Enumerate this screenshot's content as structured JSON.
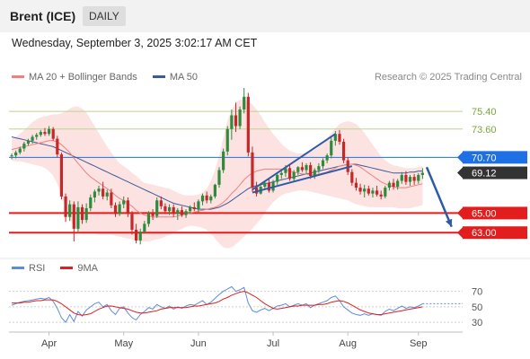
{
  "header": {
    "title": "Brent (ICE)",
    "timeframe": "DAILY",
    "datetime": "Wednesday, September 3, 2025 3:02:17 AM CET"
  },
  "legend": {
    "ma20": "MA 20 + Bollinger Bands",
    "ma50": "MA 50",
    "copyright": "Research © 2025 Trading Central",
    "rsi": "RSI",
    "nine_ma": "9MA"
  },
  "colors": {
    "ma20": "#f08080",
    "ma50": "#3a5a9a",
    "bollinger_fill": "#fde2e2",
    "candle_up": "#2e8b3e",
    "candle_down": "#c62828",
    "resistance": "#b4d88c",
    "pivot": "#1f6fe5",
    "support": "#e11d1d",
    "last_price": "#333333",
    "rsi": "#5b8dd9",
    "rsi_ma": "#e11d1d",
    "arrow": "#2f5aa8"
  },
  "chart_data": [
    {
      "type": "candlestick",
      "x_axis": [
        "Apr",
        "May",
        "Jun",
        "Jul",
        "Aug",
        "Sep"
      ],
      "ylim": [
        61.0,
        77.8
      ],
      "last_price": 69.12,
      "levels": [
        {
          "value": 75.4,
          "label": "75.40",
          "kind": "resistance"
        },
        {
          "value": 73.6,
          "label": "73.60",
          "kind": "resistance"
        },
        {
          "value": 70.7,
          "label": "70.70",
          "kind": "pivot"
        },
        {
          "value": 65.0,
          "label": "65.00",
          "kind": "support"
        },
        {
          "value": 63.0,
          "label": "63.00",
          "kind": "support"
        }
      ],
      "last_label": "69.12",
      "candles": [
        [
          70.8,
          71.1,
          70.5,
          70.9
        ],
        [
          70.9,
          71.4,
          70.6,
          71.2
        ],
        [
          71.2,
          71.8,
          71.0,
          71.6
        ],
        [
          71.6,
          72.3,
          71.3,
          72.1
        ],
        [
          72.1,
          72.6,
          71.9,
          72.4
        ],
        [
          72.4,
          73.0,
          72.1,
          72.8
        ],
        [
          72.8,
          73.2,
          72.5,
          73.0
        ],
        [
          73.0,
          73.5,
          72.8,
          73.3
        ],
        [
          73.3,
          73.7,
          72.9,
          73.1
        ],
        [
          73.1,
          73.9,
          72.9,
          73.6
        ],
        [
          73.6,
          73.8,
          72.4,
          72.6
        ],
        [
          72.6,
          72.9,
          70.7,
          71.0
        ],
        [
          71.0,
          71.2,
          66.4,
          66.7
        ],
        [
          66.7,
          67.0,
          64.1,
          64.6
        ],
        [
          64.6,
          66.3,
          64.2,
          65.9
        ],
        [
          65.9,
          66.2,
          62.1,
          63.4
        ],
        [
          63.4,
          66.2,
          63.1,
          65.6
        ],
        [
          65.6,
          65.9,
          63.9,
          64.3
        ],
        [
          64.3,
          66.0,
          64.0,
          65.5
        ],
        [
          65.5,
          66.9,
          65.2,
          66.6
        ],
        [
          66.6,
          67.4,
          66.1,
          67.2
        ],
        [
          67.2,
          67.8,
          66.8,
          67.5
        ],
        [
          67.5,
          68.2,
          66.4,
          66.7
        ],
        [
          66.7,
          67.4,
          66.3,
          67.1
        ],
        [
          67.1,
          67.5,
          65.5,
          65.8
        ],
        [
          65.8,
          66.1,
          64.6,
          64.9
        ],
        [
          64.9,
          66.2,
          64.7,
          65.9
        ],
        [
          65.9,
          66.7,
          65.5,
          66.3
        ],
        [
          66.3,
          66.6,
          64.6,
          64.9
        ],
        [
          64.9,
          65.2,
          62.8,
          63.3
        ],
        [
          63.3,
          63.9,
          61.9,
          62.2
        ],
        [
          62.2,
          63.4,
          61.8,
          63.1
        ],
        [
          63.1,
          64.2,
          62.9,
          63.9
        ],
        [
          63.9,
          65.2,
          63.6,
          65.0
        ],
        [
          65.0,
          65.4,
          64.3,
          64.7
        ],
        [
          64.7,
          66.6,
          64.5,
          66.3
        ],
        [
          66.3,
          66.7,
          65.4,
          65.7
        ],
        [
          65.7,
          66.0,
          64.9,
          65.2
        ],
        [
          65.2,
          65.9,
          64.8,
          65.6
        ],
        [
          65.6,
          65.9,
          64.6,
          64.9
        ],
        [
          64.9,
          65.5,
          64.3,
          65.3
        ],
        [
          65.3,
          65.7,
          64.6,
          64.8
        ],
        [
          64.8,
          65.4,
          64.5,
          65.2
        ],
        [
          65.2,
          65.8,
          64.9,
          65.6
        ],
        [
          65.6,
          66.1,
          65.2,
          65.4
        ],
        [
          65.4,
          66.4,
          65.1,
          66.2
        ],
        [
          66.2,
          67.0,
          65.8,
          66.8
        ],
        [
          66.8,
          67.2,
          66.0,
          66.3
        ],
        [
          66.3,
          66.9,
          66.0,
          66.7
        ],
        [
          66.7,
          68.0,
          66.5,
          67.9
        ],
        [
          67.9,
          69.7,
          67.6,
          69.4
        ],
        [
          69.4,
          71.6,
          69.1,
          71.3
        ],
        [
          71.3,
          73.9,
          70.9,
          73.6
        ],
        [
          73.6,
          75.6,
          72.5,
          75.0
        ],
        [
          75.0,
          76.3,
          73.3,
          73.9
        ],
        [
          73.9,
          75.9,
          73.6,
          75.6
        ],
        [
          75.6,
          77.8,
          75.2,
          76.9
        ],
        [
          76.9,
          77.3,
          70.8,
          71.2
        ],
        [
          71.2,
          71.8,
          67.2,
          67.6
        ],
        [
          67.6,
          68.2,
          66.7,
          67.0
        ],
        [
          67.0,
          67.9,
          66.9,
          67.7
        ],
        [
          67.7,
          68.3,
          67.5,
          68.1
        ],
        [
          68.1,
          68.6,
          67.1,
          67.3
        ],
        [
          67.3,
          68.4,
          67.1,
          68.2
        ],
        [
          68.2,
          69.1,
          67.9,
          68.9
        ],
        [
          68.9,
          69.4,
          68.5,
          69.1
        ],
        [
          69.1,
          69.9,
          68.7,
          69.6
        ],
        [
          69.6,
          69.9,
          68.3,
          68.5
        ],
        [
          68.5,
          69.4,
          68.2,
          69.2
        ],
        [
          69.2,
          69.8,
          68.9,
          69.7
        ],
        [
          69.7,
          70.2,
          69.2,
          69.4
        ],
        [
          69.4,
          70.1,
          69.0,
          69.9
        ],
        [
          69.9,
          70.2,
          68.5,
          68.8
        ],
        [
          68.8,
          69.6,
          68.5,
          69.4
        ],
        [
          69.4,
          70.1,
          69.1,
          69.8
        ],
        [
          69.8,
          70.6,
          69.5,
          70.4
        ],
        [
          70.4,
          71.1,
          70.1,
          70.9
        ],
        [
          70.9,
          72.7,
          70.6,
          72.4
        ],
        [
          72.4,
          73.4,
          71.9,
          73.1
        ],
        [
          73.1,
          73.5,
          72.0,
          72.3
        ],
        [
          72.3,
          72.6,
          70.1,
          70.4
        ],
        [
          70.4,
          70.7,
          68.9,
          69.2
        ],
        [
          69.2,
          69.5,
          67.8,
          68.1
        ],
        [
          68.1,
          68.6,
          67.3,
          67.6
        ],
        [
          67.6,
          68.0,
          66.9,
          67.2
        ],
        [
          67.2,
          67.9,
          66.6,
          67.5
        ],
        [
          67.5,
          67.8,
          66.8,
          67.0
        ],
        [
          67.0,
          67.6,
          66.6,
          67.3
        ],
        [
          67.3,
          67.8,
          66.7,
          66.9
        ],
        [
          66.9,
          67.3,
          66.4,
          66.7
        ],
        [
          66.7,
          67.8,
          66.5,
          67.6
        ],
        [
          67.6,
          68.3,
          67.3,
          68.1
        ],
        [
          68.1,
          68.5,
          67.4,
          67.7
        ],
        [
          67.7,
          68.5,
          67.4,
          68.3
        ],
        [
          68.3,
          69.2,
          68.0,
          68.9
        ],
        [
          68.9,
          69.3,
          67.9,
          68.2
        ],
        [
          68.2,
          68.9,
          67.8,
          68.7
        ],
        [
          68.7,
          69.0,
          67.9,
          68.3
        ],
        [
          68.3,
          69.1,
          68.0,
          68.9
        ],
        [
          68.9,
          69.6,
          68.5,
          69.12
        ]
      ],
      "ma20": [
        71.5,
        71.6,
        71.7,
        71.8,
        71.9,
        72.0,
        72.1,
        72.2,
        72.3,
        72.4,
        72.4,
        72.3,
        72.0,
        71.6,
        71.2,
        70.6,
        70.1,
        69.6,
        69.1,
        68.7,
        68.4,
        68.1,
        67.8,
        67.5,
        67.2,
        66.8,
        66.5,
        66.3,
        66.0,
        65.7,
        65.3,
        65.0,
        64.8,
        64.7,
        64.6,
        64.6,
        64.6,
        64.6,
        64.6,
        64.6,
        64.7,
        64.8,
        64.9,
        65.0,
        65.1,
        65.2,
        65.3,
        65.4,
        65.5,
        65.6,
        65.8,
        66.1,
        66.5,
        67.0,
        67.4,
        67.9,
        68.4,
        68.8,
        69.1,
        69.3,
        69.4,
        69.5,
        69.5,
        69.5,
        69.5,
        69.5,
        69.4,
        69.3,
        69.2,
        69.1,
        69.0,
        69.0,
        68.9,
        68.9,
        69.0,
        69.1,
        69.2,
        69.4,
        69.6,
        69.8,
        69.9,
        70.0,
        70.0,
        69.9,
        69.7,
        69.4,
        69.1,
        68.8,
        68.5,
        68.2,
        68.0,
        67.8,
        67.7,
        67.6,
        67.6,
        67.6,
        67.7,
        67.8,
        67.9,
        68.0
      ],
      "ma50": [
        72.8,
        72.7,
        72.6,
        72.5,
        72.4,
        72.3,
        72.2,
        72.1,
        72.0,
        71.9,
        71.8,
        71.6,
        71.4,
        71.2,
        71.0,
        70.8,
        70.6,
        70.4,
        70.2,
        70.0,
        69.8,
        69.6,
        69.4,
        69.2,
        69.0,
        68.8,
        68.6,
        68.4,
        68.2,
        68.0,
        67.8,
        67.6,
        67.4,
        67.2,
        67.0,
        66.8,
        66.6,
        66.4,
        66.2,
        66.0,
        65.9,
        65.8,
        65.7,
        65.6,
        65.5,
        65.4,
        65.4,
        65.4,
        65.4,
        65.5,
        65.6,
        65.8,
        66.0,
        66.3,
        66.6,
        66.9,
        67.2,
        67.5,
        67.7,
        67.8,
        67.9,
        68.0,
        68.1,
        68.2,
        68.3,
        68.4,
        68.5,
        68.6,
        68.7,
        68.8,
        68.9,
        69.0,
        69.1,
        69.2,
        69.3,
        69.4,
        69.5,
        69.6,
        69.7,
        69.8,
        69.9,
        70.0,
        70.0,
        70.0,
        69.9,
        69.8,
        69.7,
        69.6,
        69.5,
        69.4,
        69.3,
        69.2,
        69.1,
        69.1,
        69.1,
        69.1,
        69.2,
        69.2,
        69.3,
        69.3
      ],
      "bb_upper": [
        72.6,
        72.8,
        73.1,
        73.5,
        73.9,
        74.3,
        74.6,
        74.8,
        74.9,
        75.0,
        75.1,
        75.1,
        75.2,
        75.4,
        75.7,
        75.9,
        75.9,
        75.7,
        75.3,
        74.6,
        73.9,
        73.2,
        72.5,
        71.8,
        71.2,
        70.6,
        70.1,
        69.8,
        69.5,
        69.1,
        68.8,
        68.4,
        68.1,
        68.0,
        67.9,
        67.8,
        67.7,
        67.6,
        67.5,
        67.3,
        67.1,
        66.9,
        66.8,
        66.8,
        66.8,
        66.9,
        67.1,
        67.5,
        68.3,
        69.4,
        70.9,
        72.7,
        74.4,
        75.6,
        76.3,
        76.6,
        76.6,
        76.4,
        76.1,
        75.6,
        75.0,
        74.3,
        73.7,
        73.1,
        72.6,
        72.1,
        71.7,
        71.4,
        71.2,
        71.1,
        71.1,
        71.2,
        71.3,
        71.5,
        71.8,
        72.2,
        72.7,
        73.2,
        73.7,
        74.1,
        74.3,
        74.4,
        74.3,
        74.1,
        73.7,
        73.2,
        72.6,
        72.0,
        71.4,
        70.8,
        70.4,
        70.1,
        69.9,
        69.8,
        69.7,
        69.6,
        69.6,
        69.6,
        69.7,
        69.8
      ],
      "bb_lower": [
        70.4,
        70.3,
        70.3,
        70.2,
        70.1,
        70.0,
        69.9,
        69.8,
        69.6,
        69.3,
        68.8,
        68.0,
        66.8,
        65.5,
        64.4,
        63.6,
        63.2,
        63.0,
        63.0,
        63.0,
        62.9,
        62.8,
        62.8,
        62.8,
        62.8,
        62.7,
        62.6,
        62.5,
        62.4,
        62.3,
        62.2,
        62.1,
        62.1,
        62.1,
        62.2,
        62.3,
        62.4,
        62.6,
        62.8,
        63.0,
        63.2,
        63.4,
        63.6,
        63.7,
        63.7,
        63.6,
        63.5,
        63.3,
        62.9,
        62.4,
        61.9,
        61.5,
        61.4,
        61.5,
        61.8,
        62.2,
        62.6,
        63.0,
        63.4,
        63.9,
        64.4,
        65.0,
        65.6,
        66.1,
        66.5,
        66.8,
        67.0,
        67.1,
        67.2,
        67.3,
        67.3,
        67.3,
        67.2,
        67.1,
        67.0,
        66.9,
        66.8,
        66.7,
        66.6,
        66.5,
        66.4,
        66.3,
        66.1,
        65.9,
        65.8,
        65.7,
        65.6,
        65.6,
        65.6,
        65.6,
        65.6,
        65.6,
        65.6,
        65.5,
        65.5,
        65.5,
        65.5,
        65.6,
        65.7,
        65.8
      ],
      "trendlines": [
        {
          "from": [
            58,
            67.4
          ],
          "to": [
            78,
            73.1
          ]
        },
        {
          "from": [
            58,
            67.1
          ],
          "to": [
            82,
            69.8
          ]
        }
      ],
      "projection": {
        "from": [
          100,
          69.7
        ],
        "to": [
          106,
          63.6
        ]
      }
    },
    {
      "type": "line",
      "name": "RSI",
      "ylim": [
        22,
        80
      ],
      "ticks": [
        70,
        50,
        30
      ],
      "rsi": [
        52,
        54,
        56,
        57,
        58,
        59,
        60,
        61,
        60,
        62,
        57,
        48,
        36,
        30,
        40,
        31,
        44,
        38,
        46,
        50,
        54,
        56,
        50,
        53,
        45,
        40,
        48,
        50,
        42,
        36,
        33,
        40,
        44,
        49,
        47,
        53,
        50,
        48,
        51,
        47,
        50,
        48,
        51,
        53,
        52,
        55,
        58,
        53,
        56,
        61,
        66,
        70,
        73,
        76,
        70,
        72,
        75,
        55,
        45,
        43,
        46,
        48,
        45,
        48,
        51,
        52,
        54,
        50,
        52,
        54,
        52,
        54,
        49,
        52,
        54,
        56,
        58,
        62,
        64,
        58,
        50,
        46,
        42,
        40,
        39,
        41,
        39,
        41,
        40,
        39,
        44,
        47,
        45,
        48,
        51,
        48,
        50,
        49,
        51,
        54
      ],
      "rsi_ma": [
        55,
        55,
        55,
        56,
        56,
        57,
        58,
        58,
        59,
        59,
        59,
        57,
        54,
        50,
        46,
        42,
        40,
        39,
        40,
        41,
        44,
        47,
        49,
        51,
        51,
        50,
        49,
        48,
        47,
        45,
        43,
        42,
        42,
        43,
        44,
        45,
        47,
        48,
        49,
        49,
        49,
        49,
        49,
        50,
        51,
        51,
        52,
        53,
        54,
        55,
        57,
        60,
        62,
        65,
        67,
        69,
        70,
        68,
        65,
        62,
        58,
        54,
        51,
        48,
        47,
        48,
        49,
        50,
        51,
        51,
        52,
        52,
        52,
        52,
        53,
        53,
        54,
        56,
        57,
        58,
        57,
        55,
        52,
        49,
        46,
        44,
        42,
        41,
        40,
        40,
        41,
        42,
        43,
        44,
        45,
        46,
        47,
        48,
        49,
        50
      ]
    }
  ]
}
